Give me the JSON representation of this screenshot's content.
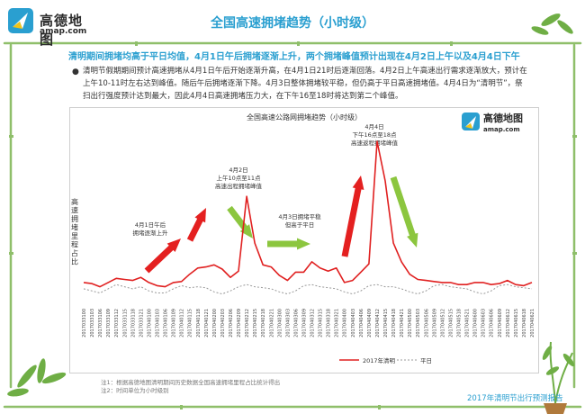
{
  "logo": {
    "name": "高德地图",
    "domain": "amap.com"
  },
  "page_title": "全国高速拥堵趋势（小时级）",
  "headline": "清明期间拥堵均高于平日均值，4月1日午后拥堵逐渐上升，两个拥堵峰值预计出现在4月2日上午以及4月4日下午",
  "body_text": "清明节假期期间预计高速拥堵从4月1日午后开始逐渐升高，在4月1日21时后逐渐回落。4月2日上午高速出行需求逐渐放大，预计在上午10-11时左右达到峰值。随后午后拥堵逐渐下降。4月3日整体拥堵较平稳，但仍高于平日高速拥堵值。4月4日为“清明节”，祭扫出行强度预计达到最大，因此4月4日高速拥堵压力大，在下午16至18时将达到第二个峰值。",
  "chart_data": {
    "type": "line",
    "title": "全国高速公路网拥堵趋势（小时级）",
    "ylabel": "高速拥堵里程占比",
    "x": [
      "2017033100",
      "2017033103",
      "2017033106",
      "2017033109",
      "2017033112",
      "2017033115",
      "2017033118",
      "2017033121",
      "2017040100",
      "2017040103",
      "2017040106",
      "2017040109",
      "2017040112",
      "2017040115",
      "2017040118",
      "2017040121",
      "2017040200",
      "2017040203",
      "2017040206",
      "2017040209",
      "2017040212",
      "2017040215",
      "2017040218",
      "2017040221",
      "2017040300",
      "2017040303",
      "2017040306",
      "2017040309",
      "2017040312",
      "2017040315",
      "2017040318",
      "2017040321",
      "2017040400",
      "2017040403",
      "2017040406",
      "2017040409",
      "2017040412",
      "2017040415",
      "2017040418",
      "2017040421",
      "2017040500",
      "2017040503",
      "2017040506",
      "2017040509",
      "2017040512",
      "2017040515",
      "2017040518",
      "2017040521",
      "2017040600",
      "2017040603",
      "2017040606",
      "2017040609",
      "2017040612",
      "2017040615",
      "2017040618",
      "2017040621"
    ],
    "series": [
      {
        "name": "2017年清明",
        "color": "#e02020",
        "values": [
          0.5,
          0.45,
          0.3,
          0.5,
          0.7,
          0.65,
          0.6,
          0.75,
          0.5,
          0.35,
          0.3,
          0.5,
          0.55,
          0.9,
          1.2,
          1.25,
          1.35,
          1.15,
          0.75,
          1.05,
          4.65,
          2.4,
          1.35,
          1.25,
          0.85,
          0.6,
          1.0,
          1.0,
          1.5,
          1.2,
          1.05,
          1.2,
          0.5,
          0.6,
          1.0,
          1.4,
          7.3,
          5.4,
          2.4,
          1.5,
          0.9,
          0.65,
          0.6,
          0.55,
          0.5,
          0.5,
          0.4,
          0.4,
          0.5,
          0.5,
          0.4,
          0.45,
          0.6,
          0.4,
          0.35,
          0.5
        ]
      },
      {
        "name": "平日",
        "color": "#999999",
        "dash": true,
        "values": [
          0.2,
          0.1,
          0.0,
          0.2,
          0.4,
          0.3,
          0.2,
          0.3,
          0.1,
          0.0,
          0.0,
          0.2,
          0.35,
          0.25,
          0.3,
          0.25,
          0.05,
          -0.05,
          0.1,
          0.3,
          0.4,
          0.3,
          0.25,
          0.2,
          0.05,
          -0.05,
          0.1,
          0.35,
          0.4,
          0.3,
          0.25,
          0.2,
          0.05,
          -0.05,
          0.1,
          0.35,
          0.4,
          0.3,
          0.3,
          0.2,
          0.05,
          -0.05,
          0.1,
          0.35,
          0.4,
          0.3,
          0.25,
          0.2,
          0.05,
          -0.05,
          0.1,
          0.35,
          0.4,
          0.3,
          0.25,
          0.2
        ]
      }
    ],
    "ylim": [
      -0.5,
      8
    ],
    "grid": false,
    "legend": "bottom",
    "annotations": [
      {
        "lines": [
          "4月1日午后",
          "拥堵逐渐上升"
        ],
        "anchor_index": 13
      },
      {
        "lines": [
          "4月2日",
          "上午10点至11点",
          "高速出程拥堵峰值"
        ],
        "anchor_index": 20
      },
      {
        "lines": [
          "4月3日拥堵平稳",
          "但高于平日"
        ],
        "anchor_index": 27
      },
      {
        "lines": [
          "4月4日",
          "下午16点至18点",
          "高速返程拥堵峰值"
        ],
        "anchor_index": 36
      }
    ]
  },
  "footnotes": [
    "注1：根据高德地图清明期间历史数据全国高速拥堵里程占比统计得出",
    "注2：时间单位为小时级别"
  ],
  "report_label": "2017年清明节出行预测报告"
}
